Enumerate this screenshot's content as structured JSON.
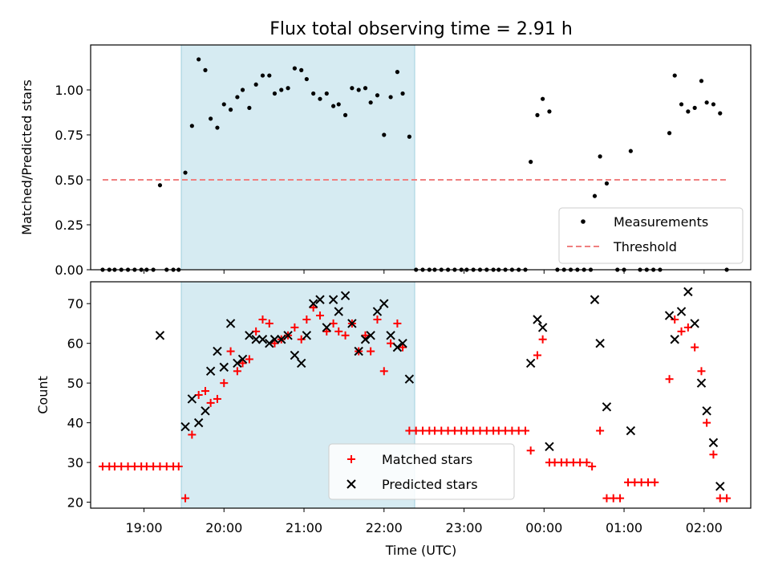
{
  "figure": {
    "title": "Flux total observing time = 2.91 h",
    "xlabel": "Time (UTC)",
    "top_ylabel": "Matched/Predicted stars",
    "bottom_ylabel": "Count"
  },
  "chart_data": [
    {
      "type": "scatter",
      "panel": "top",
      "title": "Flux total observing time = 2.91 h",
      "xlabel": "",
      "ylabel": "Matched/Predicted stars",
      "xlim": [
        "18:20",
        "02:35"
      ],
      "ylim": [
        0,
        1.25
      ],
      "x_tick_labels": [
        "19:00",
        "20:00",
        "21:00",
        "22:00",
        "23:00",
        "00:00",
        "01:00",
        "02:00"
      ],
      "y_tick_labels": [
        "0.00",
        "0.25",
        "0.50",
        "0.75",
        "1.00"
      ],
      "shaded_interval": [
        "19:28",
        "22:23"
      ],
      "grid": false,
      "legend_position": "lower-right",
      "series": [
        {
          "name": "Measurements",
          "marker": "dot",
          "color": "#000000",
          "points": [
            [
              "18:29",
              0
            ],
            [
              "18:34",
              0
            ],
            [
              "18:38",
              0
            ],
            [
              "18:43",
              0
            ],
            [
              "18:48",
              0
            ],
            [
              "18:53",
              0
            ],
            [
              "18:58",
              0
            ],
            [
              "19:02",
              0
            ],
            [
              "19:07",
              0
            ],
            [
              "19:12",
              0.47
            ],
            [
              "19:17",
              0
            ],
            [
              "19:22",
              0
            ],
            [
              "19:26",
              0
            ],
            [
              "19:31",
              0.54
            ],
            [
              "19:36",
              0.8
            ],
            [
              "19:41",
              1.17
            ],
            [
              "19:46",
              1.11
            ],
            [
              "19:50",
              0.84
            ],
            [
              "19:55",
              0.79
            ],
            [
              "20:00",
              0.92
            ],
            [
              "20:05",
              0.89
            ],
            [
              "20:10",
              0.96
            ],
            [
              "20:14",
              1.0
            ],
            [
              "20:19",
              0.9
            ],
            [
              "20:24",
              1.03
            ],
            [
              "20:29",
              1.08
            ],
            [
              "20:34",
              1.08
            ],
            [
              "20:38",
              0.98
            ],
            [
              "20:43",
              1.0
            ],
            [
              "20:48",
              1.01
            ],
            [
              "20:53",
              1.12
            ],
            [
              "20:58",
              1.11
            ],
            [
              "21:02",
              1.06
            ],
            [
              "21:07",
              0.98
            ],
            [
              "21:12",
              0.95
            ],
            [
              "21:17",
              0.98
            ],
            [
              "21:22",
              0.91
            ],
            [
              "21:26",
              0.92
            ],
            [
              "21:31",
              0.86
            ],
            [
              "21:36",
              1.01
            ],
            [
              "21:41",
              1.0
            ],
            [
              "21:46",
              1.01
            ],
            [
              "21:50",
              0.93
            ],
            [
              "21:55",
              0.97
            ],
            [
              "22:00",
              0.75
            ],
            [
              "22:05",
              0.96
            ],
            [
              "22:10",
              1.1
            ],
            [
              "22:14",
              0.98
            ],
            [
              "22:19",
              0.74
            ],
            [
              "22:24",
              0
            ],
            [
              "22:29",
              0
            ],
            [
              "22:34",
              0
            ],
            [
              "22:38",
              0
            ],
            [
              "22:43",
              0
            ],
            [
              "22:48",
              0
            ],
            [
              "22:53",
              0
            ],
            [
              "22:58",
              0
            ],
            [
              "23:02",
              0
            ],
            [
              "23:07",
              0
            ],
            [
              "23:12",
              0
            ],
            [
              "23:17",
              0
            ],
            [
              "23:22",
              0
            ],
            [
              "23:26",
              0
            ],
            [
              "23:31",
              0
            ],
            [
              "23:36",
              0
            ],
            [
              "23:41",
              0
            ],
            [
              "23:46",
              0
            ],
            [
              "23:50",
              0.6
            ],
            [
              "23:55",
              0.86
            ],
            [
              "23:59",
              0.95
            ],
            [
              "00:04",
              0.88
            ],
            [
              "00:10",
              0
            ],
            [
              "00:15",
              0
            ],
            [
              "00:20",
              0
            ],
            [
              "00:25",
              0
            ],
            [
              "00:30",
              0
            ],
            [
              "00:35",
              0
            ],
            [
              "00:38",
              0.41
            ],
            [
              "00:42",
              0.63
            ],
            [
              "00:47",
              0.48
            ],
            [
              "00:55",
              0
            ],
            [
              "01:00",
              0
            ],
            [
              "01:05",
              0.66
            ],
            [
              "01:12",
              0
            ],
            [
              "01:17",
              0
            ],
            [
              "01:22",
              0
            ],
            [
              "01:27",
              0
            ],
            [
              "01:34",
              0.76
            ],
            [
              "01:38",
              1.08
            ],
            [
              "01:43",
              0.92
            ],
            [
              "01:48",
              0.88
            ],
            [
              "01:53",
              0.9
            ],
            [
              "01:58",
              1.05
            ],
            [
              "02:02",
              0.93
            ],
            [
              "02:07",
              0.92
            ],
            [
              "02:12",
              0.87
            ],
            [
              "02:17",
              0
            ]
          ]
        },
        {
          "name": "Threshold",
          "line_style": "dashed",
          "color": "#f08080",
          "points": [
            [
              "18:29",
              0.5
            ],
            [
              "02:17",
              0.5
            ]
          ]
        }
      ]
    },
    {
      "type": "scatter",
      "panel": "bottom",
      "xlabel": "Time (UTC)",
      "ylabel": "Count",
      "xlim": [
        "18:20",
        "02:35"
      ],
      "ylim": [
        18.5,
        75.5
      ],
      "x_tick_labels": [
        "19:00",
        "20:00",
        "21:00",
        "22:00",
        "23:00",
        "00:00",
        "01:00",
        "02:00"
      ],
      "y_tick_labels": [
        "20",
        "30",
        "40",
        "50",
        "60",
        "70"
      ],
      "shaded_interval": [
        "19:28",
        "22:23"
      ],
      "grid": false,
      "legend_position": "bottom-center",
      "series": [
        {
          "name": "Matched stars",
          "marker": "plus",
          "color": "#ff0000",
          "points": [
            [
              "18:29",
              29
            ],
            [
              "18:34",
              29
            ],
            [
              "18:38",
              29
            ],
            [
              "18:43",
              29
            ],
            [
              "18:48",
              29
            ],
            [
              "18:53",
              29
            ],
            [
              "18:58",
              29
            ],
            [
              "19:02",
              29
            ],
            [
              "19:07",
              29
            ],
            [
              "19:12",
              29
            ],
            [
              "19:17",
              29
            ],
            [
              "19:22",
              29
            ],
            [
              "19:26",
              29
            ],
            [
              "19:31",
              21
            ],
            [
              "19:36",
              37
            ],
            [
              "19:41",
              47
            ],
            [
              "19:46",
              48
            ],
            [
              "19:50",
              45
            ],
            [
              "19:55",
              46
            ],
            [
              "20:00",
              50
            ],
            [
              "20:05",
              58
            ],
            [
              "20:10",
              53
            ],
            [
              "20:14",
              55
            ],
            [
              "20:19",
              56
            ],
            [
              "20:24",
              63
            ],
            [
              "20:29",
              66
            ],
            [
              "20:34",
              65
            ],
            [
              "20:38",
              60
            ],
            [
              "20:43",
              61
            ],
            [
              "20:48",
              62
            ],
            [
              "20:53",
              64
            ],
            [
              "20:58",
              61
            ],
            [
              "21:02",
              66
            ],
            [
              "21:07",
              69
            ],
            [
              "21:12",
              67
            ],
            [
              "21:17",
              63
            ],
            [
              "21:22",
              65
            ],
            [
              "21:26",
              63
            ],
            [
              "21:31",
              62
            ],
            [
              "21:36",
              65
            ],
            [
              "21:41",
              58
            ],
            [
              "21:46",
              62
            ],
            [
              "21:50",
              58
            ],
            [
              "21:55",
              66
            ],
            [
              "22:00",
              53
            ],
            [
              "22:05",
              60
            ],
            [
              "22:10",
              65
            ],
            [
              "22:14",
              59
            ],
            [
              "22:19",
              38
            ],
            [
              "22:24",
              38
            ],
            [
              "22:29",
              38
            ],
            [
              "22:34",
              38
            ],
            [
              "22:38",
              38
            ],
            [
              "22:43",
              38
            ],
            [
              "22:48",
              38
            ],
            [
              "22:53",
              38
            ],
            [
              "22:58",
              38
            ],
            [
              "23:02",
              38
            ],
            [
              "23:07",
              38
            ],
            [
              "23:12",
              38
            ],
            [
              "23:17",
              38
            ],
            [
              "23:22",
              38
            ],
            [
              "23:26",
              38
            ],
            [
              "23:31",
              38
            ],
            [
              "23:36",
              38
            ],
            [
              "23:41",
              38
            ],
            [
              "23:46",
              38
            ],
            [
              "23:50",
              33
            ],
            [
              "23:55",
              57
            ],
            [
              "23:59",
              61
            ],
            [
              "00:04",
              30
            ],
            [
              "00:08",
              30
            ],
            [
              "00:13",
              30
            ],
            [
              "00:17",
              30
            ],
            [
              "00:22",
              30
            ],
            [
              "00:27",
              30
            ],
            [
              "00:32",
              30
            ],
            [
              "00:36",
              29
            ],
            [
              "00:42",
              38
            ],
            [
              "00:47",
              21
            ],
            [
              "00:52",
              21
            ],
            [
              "00:57",
              21
            ],
            [
              "01:03",
              25
            ],
            [
              "01:08",
              25
            ],
            [
              "01:13",
              25
            ],
            [
              "01:18",
              25
            ],
            [
              "01:23",
              25
            ],
            [
              "01:34",
              51
            ],
            [
              "01:38",
              66
            ],
            [
              "01:43",
              63
            ],
            [
              "01:48",
              64
            ],
            [
              "01:53",
              59
            ],
            [
              "01:58",
              53
            ],
            [
              "02:02",
              40
            ],
            [
              "02:07",
              32
            ],
            [
              "02:12",
              21
            ],
            [
              "02:17",
              21
            ]
          ]
        },
        {
          "name": "Predicted stars",
          "marker": "x",
          "color": "#000000",
          "points": [
            [
              "19:12",
              62
            ],
            [
              "19:31",
              39
            ],
            [
              "19:36",
              46
            ],
            [
              "19:41",
              40
            ],
            [
              "19:46",
              43
            ],
            [
              "19:50",
              53
            ],
            [
              "19:55",
              58
            ],
            [
              "20:00",
              54
            ],
            [
              "20:05",
              65
            ],
            [
              "20:10",
              55
            ],
            [
              "20:14",
              56
            ],
            [
              "20:19",
              62
            ],
            [
              "20:24",
              61
            ],
            [
              "20:29",
              61
            ],
            [
              "20:34",
              60
            ],
            [
              "20:38",
              61
            ],
            [
              "20:43",
              61
            ],
            [
              "20:48",
              62
            ],
            [
              "20:53",
              57
            ],
            [
              "20:58",
              55
            ],
            [
              "21:02",
              62
            ],
            [
              "21:07",
              70
            ],
            [
              "21:12",
              71
            ],
            [
              "21:17",
              64
            ],
            [
              "21:22",
              71
            ],
            [
              "21:26",
              68
            ],
            [
              "21:31",
              72
            ],
            [
              "21:36",
              65
            ],
            [
              "21:41",
              58
            ],
            [
              "21:46",
              61
            ],
            [
              "21:50",
              62
            ],
            [
              "21:55",
              68
            ],
            [
              "22:00",
              70
            ],
            [
              "22:05",
              62
            ],
            [
              "22:10",
              59
            ],
            [
              "22:14",
              60
            ],
            [
              "22:19",
              51
            ],
            [
              "23:50",
              55
            ],
            [
              "23:55",
              66
            ],
            [
              "23:59",
              64
            ],
            [
              "00:04",
              34
            ],
            [
              "00:38",
              71
            ],
            [
              "00:42",
              60
            ],
            [
              "00:47",
              44
            ],
            [
              "01:05",
              38
            ],
            [
              "01:34",
              67
            ],
            [
              "01:38",
              61
            ],
            [
              "01:43",
              68
            ],
            [
              "01:48",
              73
            ],
            [
              "01:53",
              65
            ],
            [
              "01:58",
              50
            ],
            [
              "02:02",
              43
            ],
            [
              "02:07",
              35
            ],
            [
              "02:12",
              24
            ]
          ]
        }
      ]
    }
  ]
}
